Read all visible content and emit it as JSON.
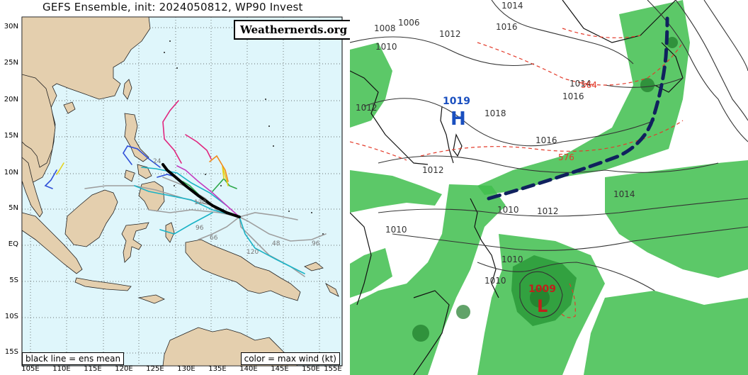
{
  "left_map": {
    "title": "GEFS Ensemble, init: 2024050812, WP90 Invest",
    "watermark": "Weathernerds.org",
    "legend_left": "black line = ens mean",
    "legend_right": "color = max wind (kt)",
    "lat_labels": [
      "30N",
      "25N",
      "20N",
      "15N",
      "10N",
      "5N",
      "EQ",
      "5S",
      "10S",
      "15S"
    ],
    "lon_labels": [
      "105E",
      "110E",
      "115E",
      "120E",
      "125E",
      "130E",
      "135E",
      "140E",
      "145E",
      "150E",
      "155E"
    ],
    "track_labels": [
      "96",
      "120",
      "66",
      "24",
      "48",
      "120",
      "96"
    ],
    "colors": {
      "ocean": "#dff6fb",
      "land": "#e4cfae",
      "ens_mean": "#000000"
    }
  },
  "right_map": {
    "high_pressure": {
      "value": "1019",
      "symbol": "H",
      "color": "#1a4fbf"
    },
    "low_pressure": {
      "value": "1009",
      "symbol": "L",
      "color": "#c0201b"
    },
    "isobar_labels": [
      "1008",
      "1006",
      "1010",
      "1012",
      "1014",
      "1016",
      "1012",
      "1018",
      "1016",
      "1014",
      "1012",
      "1014",
      "1012",
      "1010",
      "1010",
      "1010",
      "1010",
      "1016"
    ],
    "height_labels": [
      "564",
      "576"
    ],
    "colors": {
      "precip": "#3fbe4d",
      "front": "#10215e",
      "height_line": "#e33b2b",
      "isobar": "#333333"
    }
  }
}
